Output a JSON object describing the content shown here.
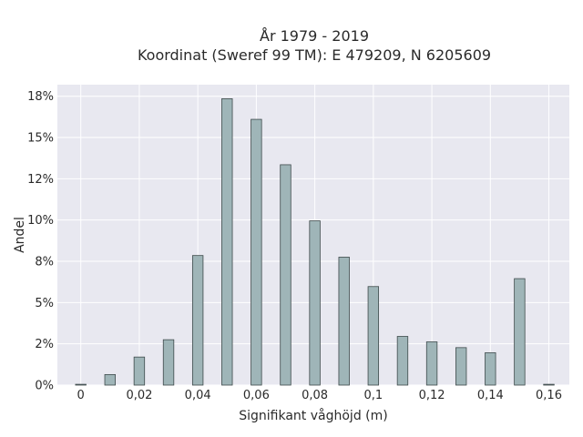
{
  "chart_data": {
    "type": "bar",
    "title": "År 1979 - 2019",
    "subtitle": "Koordinat (Sweref 99 TM): E 479209, N 6205609",
    "xlabel": "Signifikant våghöjd (m)",
    "ylabel": "Andel",
    "xlim": [
      -0.008,
      0.167
    ],
    "ylim": [
      0,
      0.182
    ],
    "x_ticks": [
      0,
      0.02,
      0.04,
      0.06,
      0.08,
      0.1,
      0.12,
      0.14,
      0.16
    ],
    "x_tick_labels": [
      "0",
      "0,02",
      "0,04",
      "0,06",
      "0,08",
      "0,1",
      "0,12",
      "0,14",
      "0,16"
    ],
    "y_ticks": [
      0,
      0.025,
      0.05,
      0.075,
      0.1,
      0.125,
      0.15,
      0.175
    ],
    "y_tick_labels": [
      "0%",
      "2%",
      "5%",
      "8%",
      "10%",
      "12%",
      "15%",
      "18%"
    ],
    "grid": true,
    "bar_color": "#9fb5b8",
    "bar_edge_color": "#3e4a4b",
    "background_color": "#e8e8f0",
    "x": [
      0,
      0.01,
      0.02,
      0.03,
      0.04,
      0.05,
      0.06,
      0.07,
      0.08,
      0.09,
      0.1,
      0.11,
      0.12,
      0.13,
      0.14,
      0.15,
      0.16
    ],
    "values": [
      0.0005,
      0.0064,
      0.017,
      0.0275,
      0.0785,
      0.1735,
      0.161,
      0.1335,
      0.0995,
      0.0775,
      0.0597,
      0.0295,
      0.0262,
      0.0227,
      0.0196,
      0.0645,
      0.0005
    ]
  }
}
